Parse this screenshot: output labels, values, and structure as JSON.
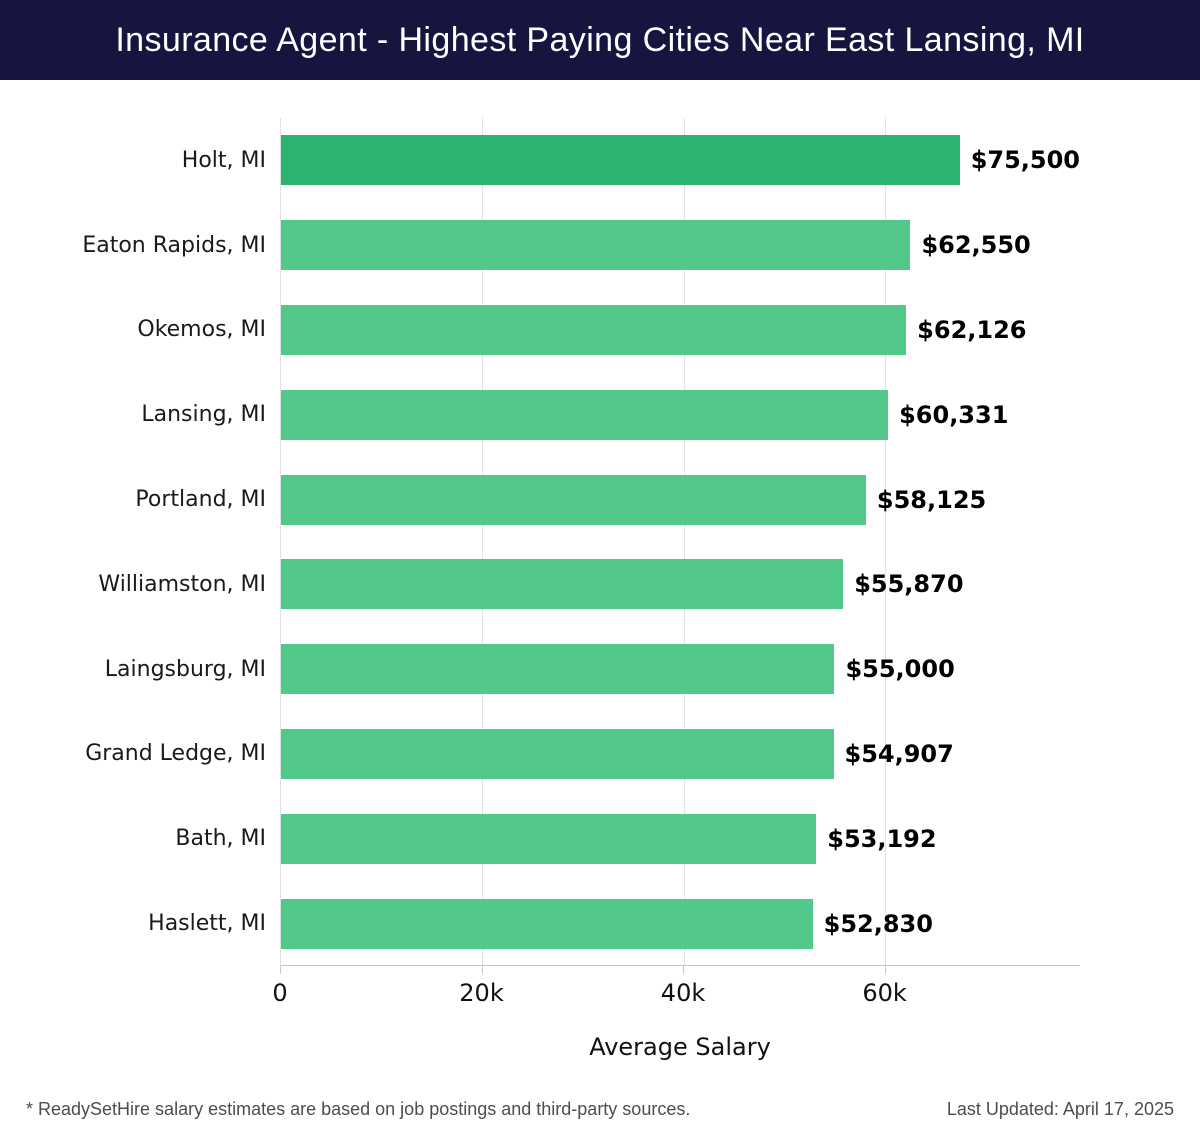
{
  "header": {
    "title": "Insurance Agent - Highest Paying Cities Near East Lansing, MI",
    "background_color": "#171440",
    "text_color": "#ffffff"
  },
  "chart_data": {
    "type": "bar",
    "orientation": "horizontal",
    "title": "Insurance Agent - Highest Paying Cities Near East Lansing, MI",
    "xlabel": "Average Salary",
    "ylabel": "",
    "categories": [
      "Holt, MI",
      "Eaton Rapids, MI",
      "Okemos, MI",
      "Lansing, MI",
      "Portland, MI",
      "Williamston, MI",
      "Laingsburg, MI",
      "Grand Ledge, MI",
      "Bath, MI",
      "Haslett, MI"
    ],
    "values": [
      75500,
      62550,
      62126,
      60331,
      58125,
      55870,
      55000,
      54907,
      53192,
      52830
    ],
    "value_labels": [
      "$75,500",
      "$62,550",
      "$62,126",
      "$60,331",
      "$58,125",
      "$55,870",
      "$55,000",
      "$54,907",
      "$53,192",
      "$52,830"
    ],
    "xlim": [
      0,
      79400
    ],
    "x_ticks": [
      {
        "value": 0,
        "label": "0"
      },
      {
        "value": 20000,
        "label": "20k"
      },
      {
        "value": 40000,
        "label": "40k"
      },
      {
        "value": 60000,
        "label": "60k"
      }
    ],
    "grid": true,
    "legend": "none",
    "bar_color": "#52c98b",
    "highlight_bar_color": "#2db371",
    "highlight_index": 0
  },
  "footer": {
    "source_note": "* ReadySetHire salary estimates are based on job postings and third-party sources.",
    "last_updated": "Last Updated: April 17, 2025"
  }
}
